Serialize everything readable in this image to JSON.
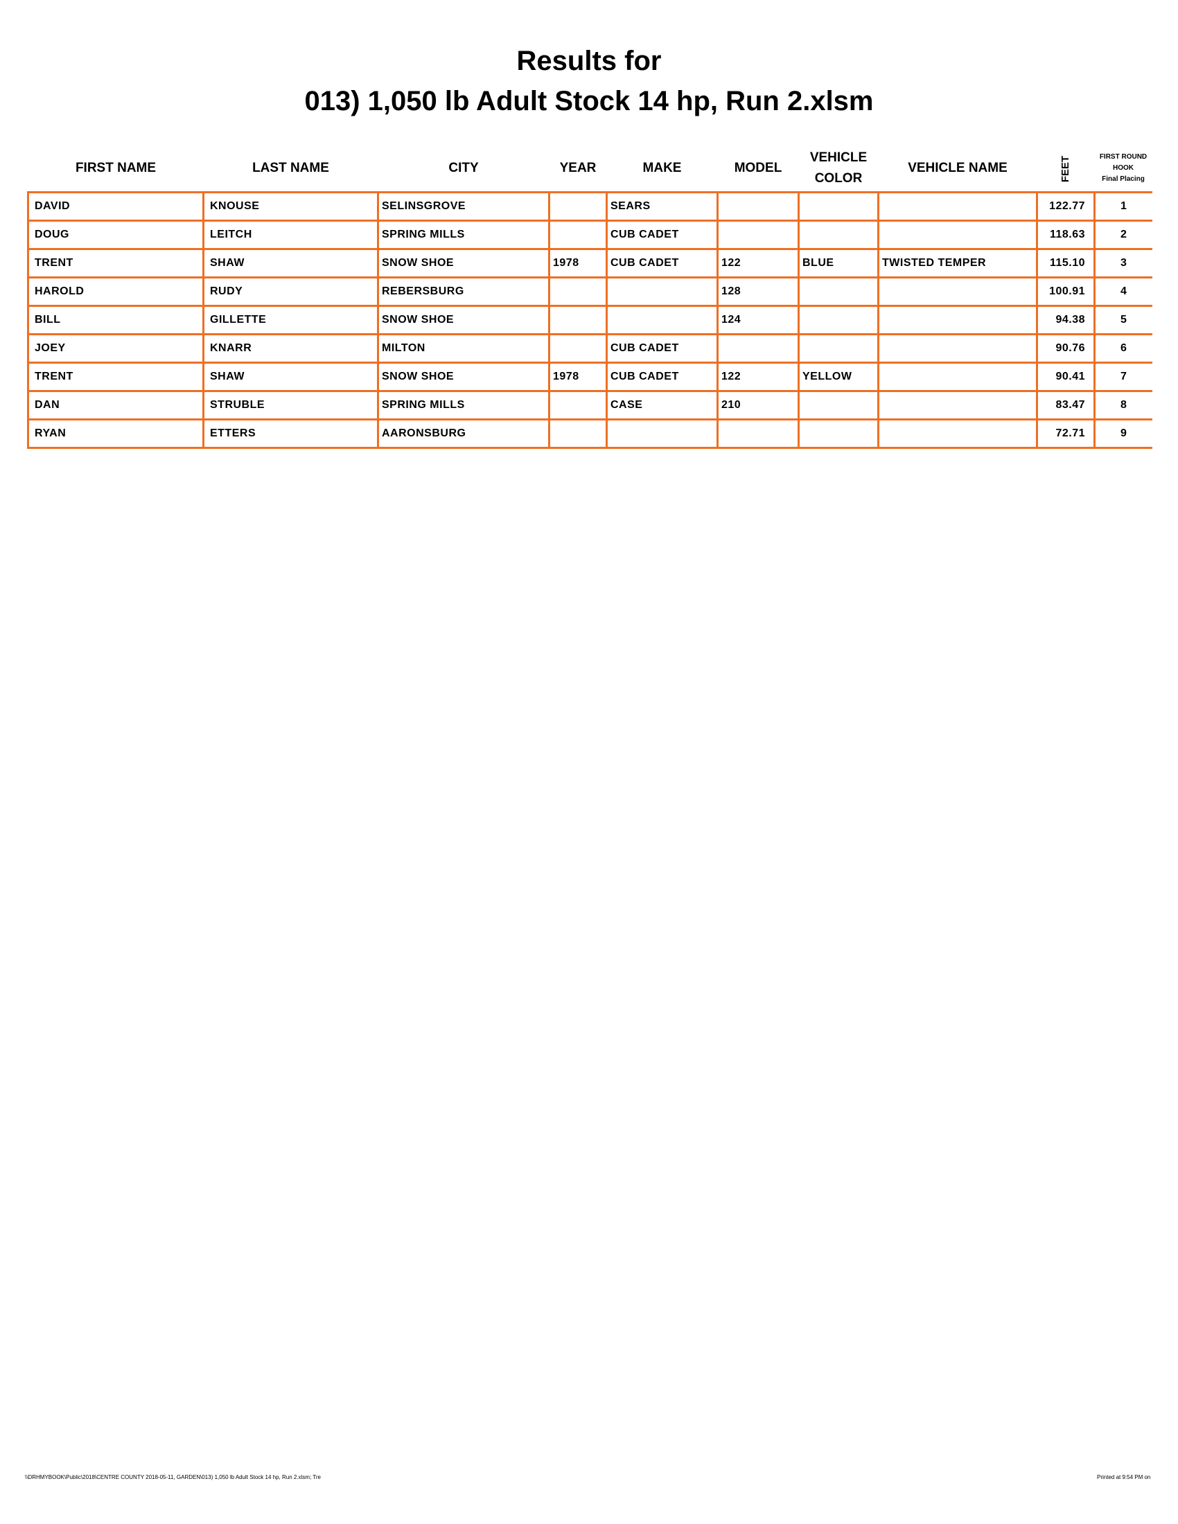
{
  "title_line1": "Results for",
  "title_line2": "013) 1,050 lb Adult Stock 14 hp, Run 2.xlsm",
  "accent_color": "#ed7022",
  "columns": {
    "first_name": "FIRST NAME",
    "last_name": "LAST NAME",
    "city": "CITY",
    "year": "YEAR",
    "make": "MAKE",
    "model": "MODEL",
    "vehicle_color_1": "VEHICLE",
    "vehicle_color_2": "COLOR",
    "vehicle_name": "VEHICLE NAME",
    "feet": "FEET",
    "placing_1": "FIRST ROUND",
    "placing_2": "HOOK",
    "placing_3": "Final Placing"
  },
  "rows": [
    {
      "first": "DAVID",
      "last": "KNOUSE",
      "city": "SELINSGROVE",
      "year": "",
      "make": "SEARS",
      "model": "",
      "color": "",
      "vname": "",
      "feet": "122.77",
      "place": "1"
    },
    {
      "first": "DOUG",
      "last": "LEITCH",
      "city": "SPRING MILLS",
      "year": "",
      "make": "CUB CADET",
      "model": "",
      "color": "",
      "vname": "",
      "feet": "118.63",
      "place": "2"
    },
    {
      "first": "TRENT",
      "last": "SHAW",
      "city": "SNOW SHOE",
      "year": "1978",
      "make": "CUB CADET",
      "model": "122",
      "color": "BLUE",
      "vname": "TWISTED TEMPER",
      "feet": "115.10",
      "place": "3"
    },
    {
      "first": "HAROLD",
      "last": "RUDY",
      "city": "REBERSBURG",
      "year": "",
      "make": "",
      "model": "128",
      "color": "",
      "vname": "",
      "feet": "100.91",
      "place": "4"
    },
    {
      "first": "BILL",
      "last": "GILLETTE",
      "city": "SNOW SHOE",
      "year": "",
      "make": "",
      "model": "124",
      "color": "",
      "vname": "",
      "feet": "94.38",
      "place": "5"
    },
    {
      "first": "JOEY",
      "last": "KNARR",
      "city": "MILTON",
      "year": "",
      "make": "CUB CADET",
      "model": "",
      "color": "",
      "vname": "",
      "feet": "90.76",
      "place": "6"
    },
    {
      "first": "TRENT",
      "last": "SHAW",
      "city": "SNOW SHOE",
      "year": "1978",
      "make": "CUB CADET",
      "model": "122",
      "color": "YELLOW",
      "vname": "",
      "feet": "90.41",
      "place": "7"
    },
    {
      "first": "DAN",
      "last": "STRUBLE",
      "city": "SPRING MILLS",
      "year": "",
      "make": "CASE",
      "model": "210",
      "color": "",
      "vname": "",
      "feet": "83.47",
      "place": "8"
    },
    {
      "first": "RYAN",
      "last": "ETTERS",
      "city": "AARONSBURG",
      "year": "",
      "make": "",
      "model": "",
      "color": "",
      "vname": "",
      "feet": "72.71",
      "place": "9"
    }
  ],
  "footer_left": "\\\\DRHMYBOOK\\Public\\2018\\CENTRE COUNTY 2018-05-11, GARDEN\\013) 1,050 lb Adult Stock 14 hp, Run 2.xlsm; Tre",
  "footer_right": "Printed at 9:54 PM on"
}
